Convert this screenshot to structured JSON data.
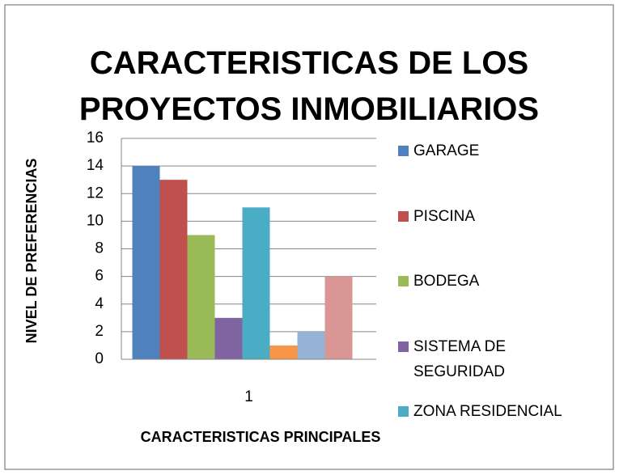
{
  "chart_data": {
    "type": "bar",
    "title": "CARACTERISTICAS DE LOS PROYECTOS INMOBILIARIOS",
    "x_label": "CARACTERISTICAS PRINCIPALES",
    "y_label": "NIVEL DE PREFERENCIAS",
    "categories": [
      "1"
    ],
    "series": [
      {
        "name": "GARAGE",
        "color": "#4f81bd",
        "values": [
          14
        ]
      },
      {
        "name": "PISCINA",
        "color": "#c0504d",
        "values": [
          13
        ]
      },
      {
        "name": "BODEGA",
        "color": "#9bbb59",
        "values": [
          9
        ]
      },
      {
        "name": "SISTEMA DE SEGURIDAD",
        "color": "#8064a2",
        "values": [
          3
        ]
      },
      {
        "name": "ZONA RESIDENCIAL",
        "color": "#4bacc6",
        "values": [
          11
        ]
      },
      {
        "color": "#f79646",
        "values": [
          1
        ]
      },
      {
        "color": "#95b3d7",
        "values": [
          2
        ]
      },
      {
        "color": "#d99694",
        "values": [
          6
        ]
      }
    ],
    "ylim": [
      0,
      16
    ],
    "yticks": [
      0,
      2,
      4,
      6,
      8,
      10,
      12,
      14,
      16
    ],
    "grid": true,
    "legend": "right"
  }
}
